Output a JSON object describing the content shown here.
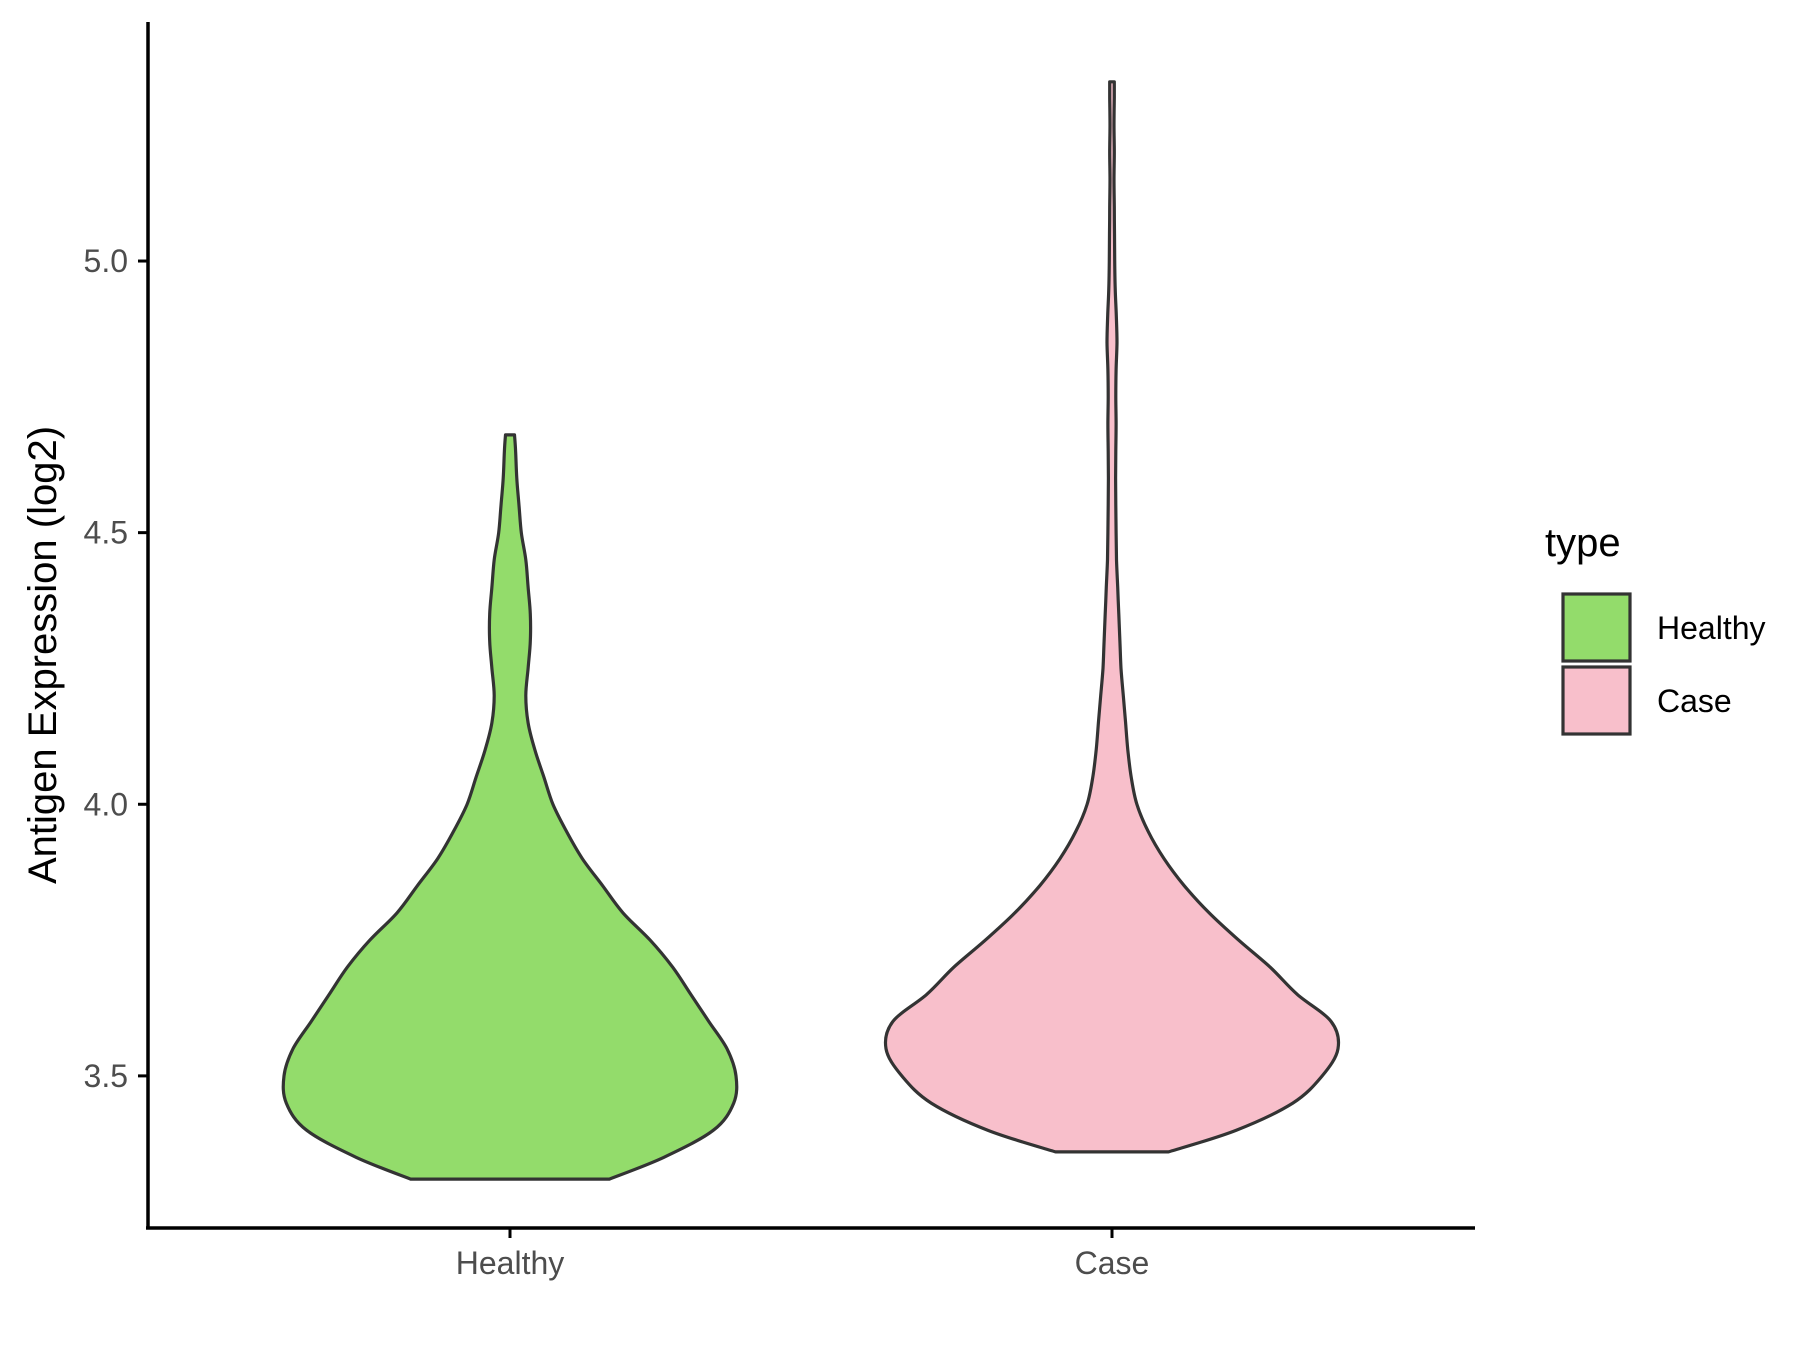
{
  "chart_data": {
    "type": "violin",
    "ylabel": "Antigen Expression (log2)",
    "xlabel": "",
    "categories": [
      "Healthy",
      "Case"
    ],
    "ylim": [
      3.22,
      5.44
    ],
    "yticks": [
      "3.5",
      "4.0",
      "4.5",
      "5.0"
    ],
    "legend": {
      "title": "type",
      "position": "right"
    },
    "grid": false,
    "series": [
      {
        "name": "Healthy",
        "color": "#93dc6b",
        "range": [
          3.31,
          4.68
        ],
        "density_profile": [
          [
            3.31,
            0.44
          ],
          [
            3.35,
            0.68
          ],
          [
            3.4,
            0.9
          ],
          [
            3.45,
            0.99
          ],
          [
            3.5,
            1.0
          ],
          [
            3.55,
            0.96
          ],
          [
            3.6,
            0.88
          ],
          [
            3.65,
            0.8
          ],
          [
            3.7,
            0.72
          ],
          [
            3.75,
            0.62
          ],
          [
            3.8,
            0.5
          ],
          [
            3.85,
            0.41
          ],
          [
            3.9,
            0.32
          ],
          [
            3.95,
            0.25
          ],
          [
            4.0,
            0.19
          ],
          [
            4.05,
            0.15
          ],
          [
            4.1,
            0.11
          ],
          [
            4.15,
            0.08
          ],
          [
            4.2,
            0.07
          ],
          [
            4.25,
            0.08
          ],
          [
            4.3,
            0.09
          ],
          [
            4.35,
            0.09
          ],
          [
            4.4,
            0.08
          ],
          [
            4.45,
            0.07
          ],
          [
            4.5,
            0.05
          ],
          [
            4.55,
            0.04
          ],
          [
            4.6,
            0.03
          ],
          [
            4.65,
            0.025
          ],
          [
            4.68,
            0.02
          ]
        ]
      },
      {
        "name": "Case",
        "color": "#f8bfcb",
        "range": [
          3.36,
          5.33
        ],
        "density_profile": [
          [
            3.36,
            0.25
          ],
          [
            3.4,
            0.55
          ],
          [
            3.45,
            0.8
          ],
          [
            3.5,
            0.93
          ],
          [
            3.55,
            1.0
          ],
          [
            3.6,
            0.97
          ],
          [
            3.65,
            0.82
          ],
          [
            3.7,
            0.7
          ],
          [
            3.75,
            0.56
          ],
          [
            3.8,
            0.43
          ],
          [
            3.85,
            0.32
          ],
          [
            3.9,
            0.23
          ],
          [
            3.95,
            0.16
          ],
          [
            4.0,
            0.11
          ],
          [
            4.05,
            0.085
          ],
          [
            4.1,
            0.07
          ],
          [
            4.15,
            0.06
          ],
          [
            4.2,
            0.05
          ],
          [
            4.25,
            0.04
          ],
          [
            4.3,
            0.035
          ],
          [
            4.35,
            0.03
          ],
          [
            4.4,
            0.025
          ],
          [
            4.45,
            0.02
          ],
          [
            4.5,
            0.018
          ],
          [
            4.55,
            0.017
          ],
          [
            4.6,
            0.016
          ],
          [
            4.65,
            0.017
          ],
          [
            4.7,
            0.018
          ],
          [
            4.75,
            0.017
          ],
          [
            4.8,
            0.018
          ],
          [
            4.85,
            0.022
          ],
          [
            4.9,
            0.019
          ],
          [
            4.95,
            0.014
          ],
          [
            5.0,
            0.012
          ],
          [
            5.05,
            0.011
          ],
          [
            5.1,
            0.01
          ],
          [
            5.15,
            0.009
          ],
          [
            5.2,
            0.01
          ],
          [
            5.25,
            0.009
          ],
          [
            5.3,
            0.01
          ],
          [
            5.33,
            0.01
          ]
        ]
      }
    ]
  }
}
